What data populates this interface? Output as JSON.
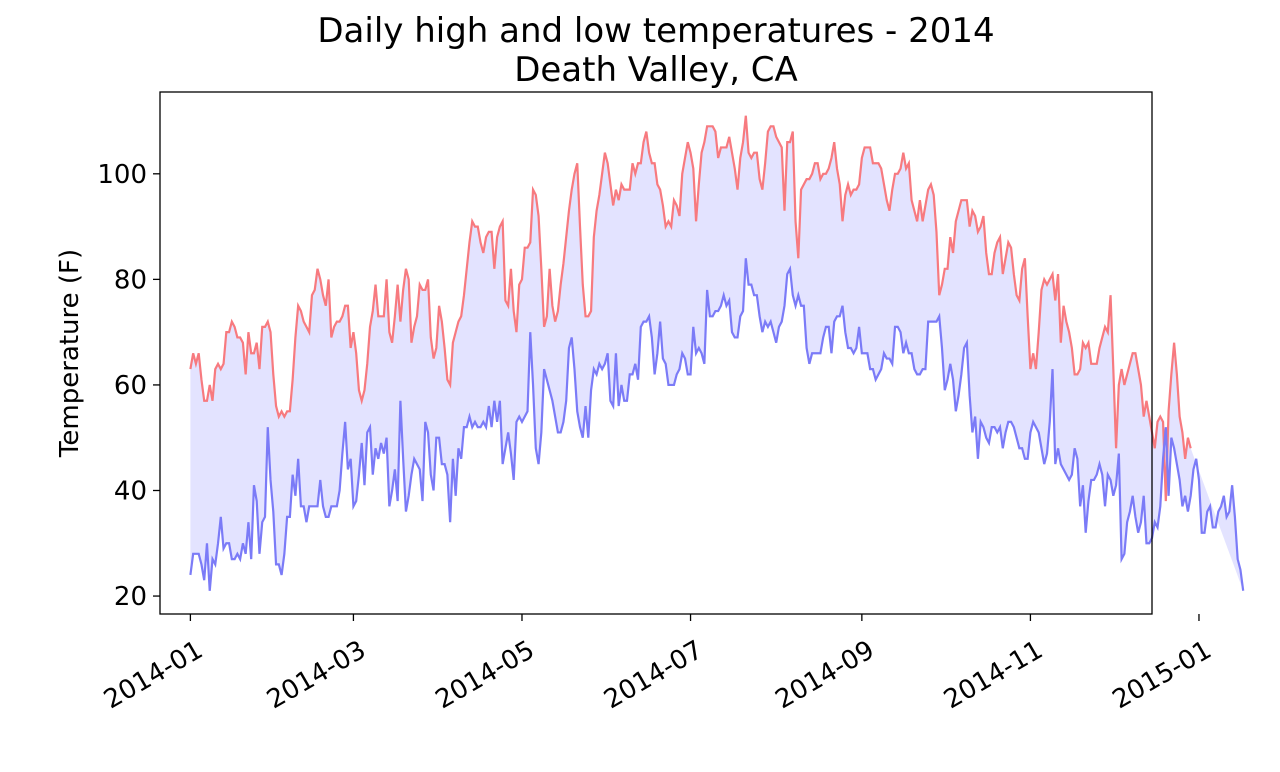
{
  "chart_data": {
    "type": "line",
    "title": "Daily high and low temperatures - 2014",
    "subtitle": "Death Valley, CA",
    "xlabel": "",
    "ylabel": "Temperature (F)",
    "x_start_date": "2014-01-01",
    "x_step_days": 1,
    "xlim_days": [
      -11,
      348
    ],
    "x_ticks": [
      {
        "label": "2014-01",
        "day": 0
      },
      {
        "label": "2014-03",
        "day": 59
      },
      {
        "label": "2014-05",
        "day": 120
      },
      {
        "label": "2014-07",
        "day": 181
      },
      {
        "label": "2014-09",
        "day": 243
      },
      {
        "label": "2014-11",
        "day": 304
      },
      {
        "label": "2015-01",
        "day": 365
      }
    ],
    "ylim": [
      16.6,
      115.5
    ],
    "y_ticks": [
      20,
      40,
      60,
      80,
      100
    ],
    "grid": false,
    "fill_between": {
      "color": "#0000ff",
      "opacity": 0.11
    },
    "series": [
      {
        "name": "high",
        "color": "#f77a7f",
        "values": [
          63,
          66,
          64,
          66,
          61,
          57,
          57,
          60,
          57,
          63,
          64,
          63,
          64,
          70,
          70,
          72,
          71,
          69,
          69,
          68,
          62,
          70,
          66,
          66,
          68,
          63,
          71,
          71,
          72,
          70,
          62,
          56,
          54,
          55,
          54,
          55,
          55,
          61,
          69,
          75,
          74,
          72,
          71,
          70,
          77,
          78,
          82,
          80,
          77,
          75,
          80,
          69,
          71,
          72,
          72,
          73,
          75,
          75,
          67,
          70,
          66,
          59,
          57,
          59,
          64,
          71,
          74,
          79,
          73,
          73,
          73,
          80,
          70,
          68,
          73,
          79,
          72,
          78,
          82,
          80,
          68,
          71,
          73,
          79,
          78,
          78,
          80,
          69,
          65,
          67,
          75,
          72,
          67,
          61,
          60,
          68,
          70,
          72,
          73,
          77,
          82,
          87,
          91,
          90,
          90,
          87,
          85,
          88,
          89,
          89,
          82,
          88,
          90,
          91,
          76,
          75,
          82,
          74,
          70,
          79,
          80,
          86,
          86,
          87,
          97,
          96,
          92,
          82,
          71,
          73,
          82,
          75,
          72,
          74,
          79,
          83,
          88,
          93,
          97,
          100,
          102,
          90,
          79,
          73,
          73,
          74,
          88,
          93,
          96,
          100,
          104,
          102,
          98,
          94,
          97,
          95,
          98,
          97,
          97,
          97,
          102,
          100,
          102,
          102,
          106,
          108,
          104,
          102,
          102,
          98,
          97,
          94,
          90,
          91,
          90,
          95,
          94,
          92,
          100,
          103,
          106,
          104,
          101,
          91,
          98,
          104,
          106,
          109,
          109,
          109,
          108,
          103,
          105,
          105,
          105,
          107,
          104,
          101,
          97,
          103,
          106,
          111,
          104,
          103,
          104,
          104,
          99,
          97,
          102,
          108,
          109,
          109,
          107,
          106,
          105,
          93,
          106,
          106,
          108,
          91,
          84,
          97,
          98,
          99,
          99,
          100,
          102,
          102,
          99,
          100,
          100,
          101,
          103,
          106,
          101,
          98,
          91,
          96,
          98,
          96,
          97,
          97,
          98,
          103,
          105,
          105,
          105,
          102,
          102,
          102,
          101,
          98,
          95,
          93,
          97,
          100,
          100,
          101,
          104,
          101,
          102,
          95,
          93,
          91,
          95,
          91,
          94,
          97,
          98,
          96,
          89,
          77,
          79,
          82,
          82,
          88,
          85,
          91,
          93,
          95,
          95,
          95,
          90,
          93,
          92,
          89,
          90,
          92,
          85,
          81,
          81,
          85,
          87,
          88,
          81,
          84,
          87,
          86,
          81,
          77,
          76,
          82,
          84,
          73,
          63,
          66,
          63,
          70,
          78,
          80,
          79,
          80,
          81,
          76,
          81,
          68,
          75,
          72,
          70,
          67,
          62,
          62,
          63,
          68,
          67,
          68,
          64,
          64,
          64,
          67,
          69,
          71,
          70,
          77,
          63,
          48,
          60,
          63,
          60,
          62,
          64,
          66,
          66,
          63,
          60,
          54,
          57,
          54,
          51,
          48,
          53,
          54,
          53,
          38,
          55,
          62,
          68,
          62,
          54,
          51,
          46,
          50,
          48
        ]
      },
      {
        "name": "low",
        "color": "#7b7bf7",
        "values": [
          24,
          28,
          28,
          28,
          26,
          23,
          30,
          21,
          27,
          26,
          30,
          35,
          29,
          30,
          30,
          27,
          27,
          28,
          27,
          30,
          28,
          34,
          27,
          41,
          38,
          28,
          34,
          35,
          52,
          42,
          36,
          26,
          26,
          24,
          28,
          35,
          35,
          43,
          39,
          46,
          37,
          37,
          34,
          37,
          37,
          37,
          37,
          42,
          37,
          35,
          35,
          37,
          37,
          37,
          40,
          47,
          53,
          44,
          46,
          37,
          38,
          43,
          49,
          41,
          51,
          52,
          43,
          48,
          46,
          49,
          47,
          50,
          37,
          40,
          44,
          38,
          57,
          46,
          36,
          39,
          43,
          46,
          45,
          44,
          38,
          53,
          51,
          43,
          40,
          50,
          50,
          45,
          45,
          43,
          34,
          46,
          39,
          48,
          46,
          52,
          52,
          54,
          52,
          53,
          52,
          52,
          53,
          52,
          56,
          52,
          57,
          53,
          57,
          45,
          48,
          51,
          47,
          42,
          53,
          54,
          53,
          54,
          55,
          70,
          60,
          48,
          45,
          51,
          63,
          61,
          59,
          57,
          54,
          51,
          51,
          53,
          57,
          67,
          69,
          63,
          55,
          52,
          50,
          56,
          50,
          59,
          63,
          62,
          64,
          63,
          64,
          66,
          57,
          56,
          66,
          56,
          60,
          57,
          57,
          62,
          62,
          64,
          61,
          71,
          72,
          72,
          73,
          69,
          62,
          66,
          72,
          65,
          64,
          60,
          60,
          60,
          62,
          63,
          66,
          65,
          62,
          62,
          71,
          66,
          67,
          66,
          64,
          78,
          73,
          73,
          74,
          74,
          75,
          77,
          75,
          76,
          70,
          69,
          69,
          73,
          74,
          84,
          79,
          79,
          77,
          77,
          73,
          70,
          72,
          71,
          72,
          70,
          68,
          71,
          72,
          75,
          81,
          82,
          77,
          75,
          77,
          75,
          75,
          67,
          64,
          66,
          66,
          66,
          66,
          69,
          71,
          71,
          66,
          72,
          73,
          73,
          75,
          70,
          67,
          67,
          66,
          67,
          71,
          66,
          66,
          66,
          63,
          63,
          61,
          62,
          63,
          66,
          65,
          65,
          64,
          71,
          71,
          70,
          66,
          68,
          66,
          66,
          63,
          62,
          62,
          63,
          63,
          72,
          72,
          72,
          72,
          73,
          67,
          59,
          61,
          64,
          61,
          55,
          58,
          62,
          67,
          68,
          58,
          51,
          54,
          46,
          53,
          52,
          50,
          49,
          52,
          52,
          51,
          52,
          48,
          51,
          53,
          53,
          52,
          50,
          48,
          48,
          46,
          46,
          51,
          53,
          52,
          51,
          48,
          45,
          47,
          53,
          63,
          45,
          48,
          45,
          44,
          43,
          42,
          43,
          48,
          46,
          37,
          41,
          32,
          38,
          42,
          42,
          43,
          45,
          43,
          37,
          43,
          42,
          39,
          41,
          47,
          27,
          28,
          34,
          36,
          39,
          35,
          32,
          34,
          39,
          30,
          30,
          31,
          34,
          33,
          37,
          46,
          52,
          39,
          50,
          48,
          45,
          42,
          37,
          39,
          36,
          39,
          44,
          46,
          42,
          32,
          32,
          36,
          37,
          33,
          33,
          36,
          37,
          39,
          35,
          36,
          41,
          35,
          27,
          25,
          21
        ]
      }
    ]
  }
}
